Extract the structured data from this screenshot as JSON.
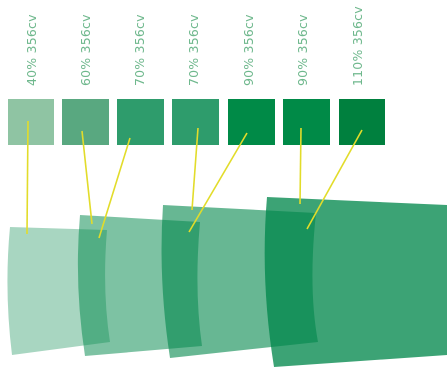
{
  "swatches": [
    {
      "label": "40% 356cv",
      "color": "#8fc4a3",
      "opacity": 0.4
    },
    {
      "label": "60% 356cv",
      "color": "#59a880",
      "opacity": 0.6
    },
    {
      "label": "70% 356cv",
      "color": "#2e9c6c",
      "opacity": 0.7
    },
    {
      "label": "70% 356cv",
      "color": "#2e9c6c",
      "opacity": 0.7
    },
    {
      "label": "90% 356cv",
      "color": "#008a47",
      "opacity": 0.9
    },
    {
      "label": "90% 356cv",
      "color": "#008a47",
      "opacity": 0.9
    },
    {
      "label": "110% 356cv",
      "color": "#00803e",
      "opacity": 1.1
    }
  ],
  "colors": {
    "label_text": "#6fb88d",
    "connector": "#e2dc2a",
    "base_green": "#00874a"
  }
}
